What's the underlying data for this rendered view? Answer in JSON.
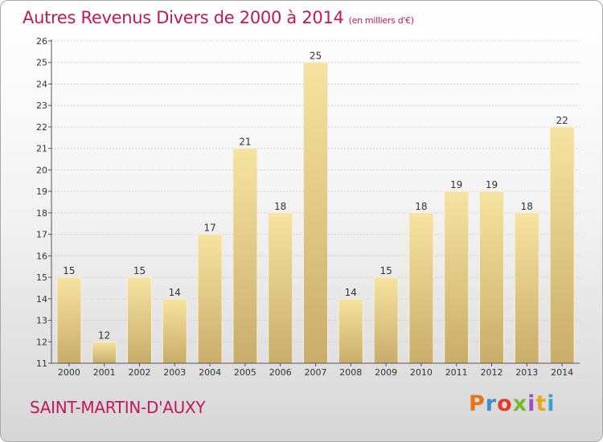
{
  "header": {
    "title": "Autres Revenus Divers de 2000 à 2014",
    "unit_note": "(en milliers d'€)"
  },
  "footer": {
    "commune": "SAINT-MARTIN-D'AUXY",
    "brand": "Proxiti",
    "brand_colors": [
      "#e8731a",
      "#3a8fd0",
      "#e63a2a",
      "#7ab82a",
      "#9b4fc2",
      "#e8a81a",
      "#3aa0d0"
    ]
  },
  "colors": {
    "bar_top": "#f7e3a0",
    "bar_bottom": "#c9ad6a",
    "title": "#c2185b",
    "grid": "#cfcfcf"
  },
  "chart_data": {
    "type": "bar",
    "title": "Autres Revenus Divers de 2000 à 2014",
    "subtitle": "(en milliers d'€)",
    "categories": [
      "2000",
      "2001",
      "2002",
      "2003",
      "2004",
      "2005",
      "2006",
      "2007",
      "2008",
      "2009",
      "2010",
      "2011",
      "2012",
      "2013",
      "2014"
    ],
    "values": [
      15,
      12,
      15,
      14,
      17,
      21,
      18,
      25,
      14,
      15,
      18,
      19,
      19,
      18,
      22
    ],
    "ylim": [
      11,
      26
    ],
    "yticks": [
      11,
      12,
      13,
      14,
      15,
      16,
      17,
      18,
      19,
      20,
      21,
      22,
      23,
      24,
      25,
      26
    ],
    "grid": true,
    "data_labels": true
  }
}
